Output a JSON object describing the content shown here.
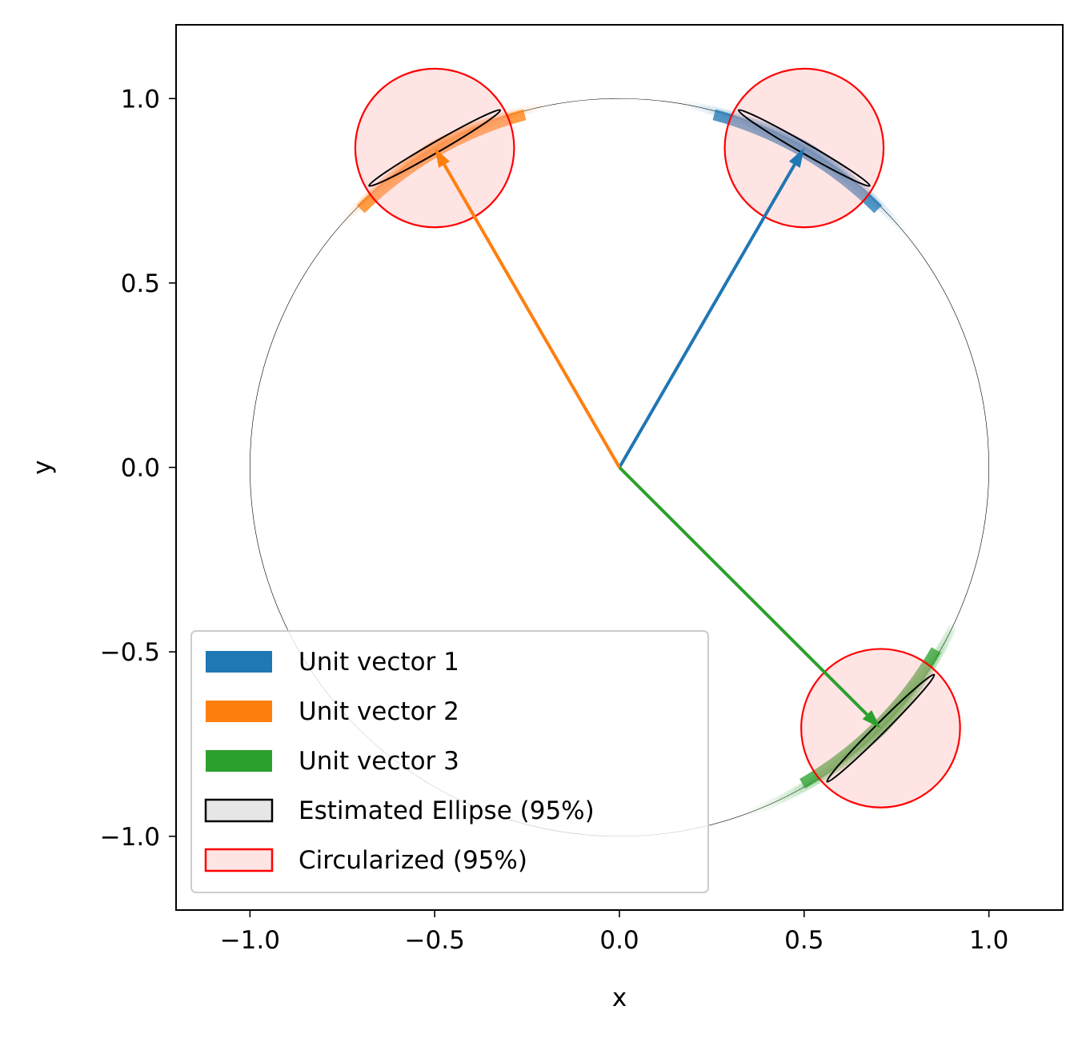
{
  "chart_data": {
    "type": "scatter",
    "title": "",
    "xlabel": "x",
    "ylabel": "y",
    "xlim": [
      -1.2,
      1.2
    ],
    "ylim": [
      -1.2,
      1.2
    ],
    "xticks": [
      -1.0,
      -0.5,
      0.0,
      0.5,
      1.0
    ],
    "yticks": [
      -1.0,
      -0.5,
      0.0,
      0.5,
      1.0
    ],
    "xtick_labels": [
      "−1.0",
      "−0.5",
      "0.0",
      "0.5",
      "1.0"
    ],
    "ytick_labels": [
      "−1.0",
      "−0.5",
      "0.0",
      "0.5",
      "1.0"
    ],
    "grid": false,
    "unit_circle": {
      "center": [
        0,
        0
      ],
      "radius": 1.0,
      "color": "#000000"
    },
    "series": [
      {
        "name": "Unit vector 1",
        "color": "#1f77b4",
        "vector": [
          0.5,
          0.866
        ],
        "angle_deg": 60,
        "sample_arc_deg": [
          38,
          82
        ],
        "ellipse": {
          "center": [
            0.5,
            0.866
          ],
          "semi_major": 0.205,
          "semi_minor": 0.014,
          "angle_deg": -30
        },
        "circle": {
          "center": [
            0.5,
            0.866
          ],
          "radius": 0.215
        }
      },
      {
        "name": "Unit vector 2",
        "color": "#ff7f0e",
        "vector": [
          -0.5,
          0.866
        ],
        "angle_deg": 120,
        "sample_arc_deg": [
          100,
          140
        ],
        "ellipse": {
          "center": [
            -0.5,
            0.866
          ],
          "semi_major": 0.205,
          "semi_minor": 0.014,
          "angle_deg": 30
        },
        "circle": {
          "center": [
            -0.5,
            0.866
          ],
          "radius": 0.215
        }
      },
      {
        "name": "Unit vector 3",
        "color": "#2ca02c",
        "vector": [
          0.707,
          -0.707
        ],
        "angle_deg": -45,
        "sample_arc_deg": [
          -72,
          -26
        ],
        "ellipse": {
          "center": [
            0.707,
            -0.707
          ],
          "semi_major": 0.205,
          "semi_minor": 0.014,
          "angle_deg": 45
        },
        "circle": {
          "center": [
            0.707,
            -0.707
          ],
          "radius": 0.215
        }
      }
    ],
    "legend": {
      "placement": "lower-left",
      "entries": [
        {
          "label": "Unit vector 1",
          "kind": "patch",
          "fill": "#1f77b4",
          "edge": "#1f77b4"
        },
        {
          "label": "Unit vector 2",
          "kind": "patch",
          "fill": "#ff7f0e",
          "edge": "#ff7f0e"
        },
        {
          "label": "Unit vector 3",
          "kind": "patch",
          "fill": "#2ca02c",
          "edge": "#2ca02c"
        },
        {
          "label": "Estimated Ellipse (95%)",
          "kind": "outline",
          "fill": "#e6e6e6",
          "edge": "#000000"
        },
        {
          "label": "Circularized (95%)",
          "kind": "outline",
          "fill": "#ffe4e4",
          "edge": "#ff0000"
        }
      ]
    }
  }
}
